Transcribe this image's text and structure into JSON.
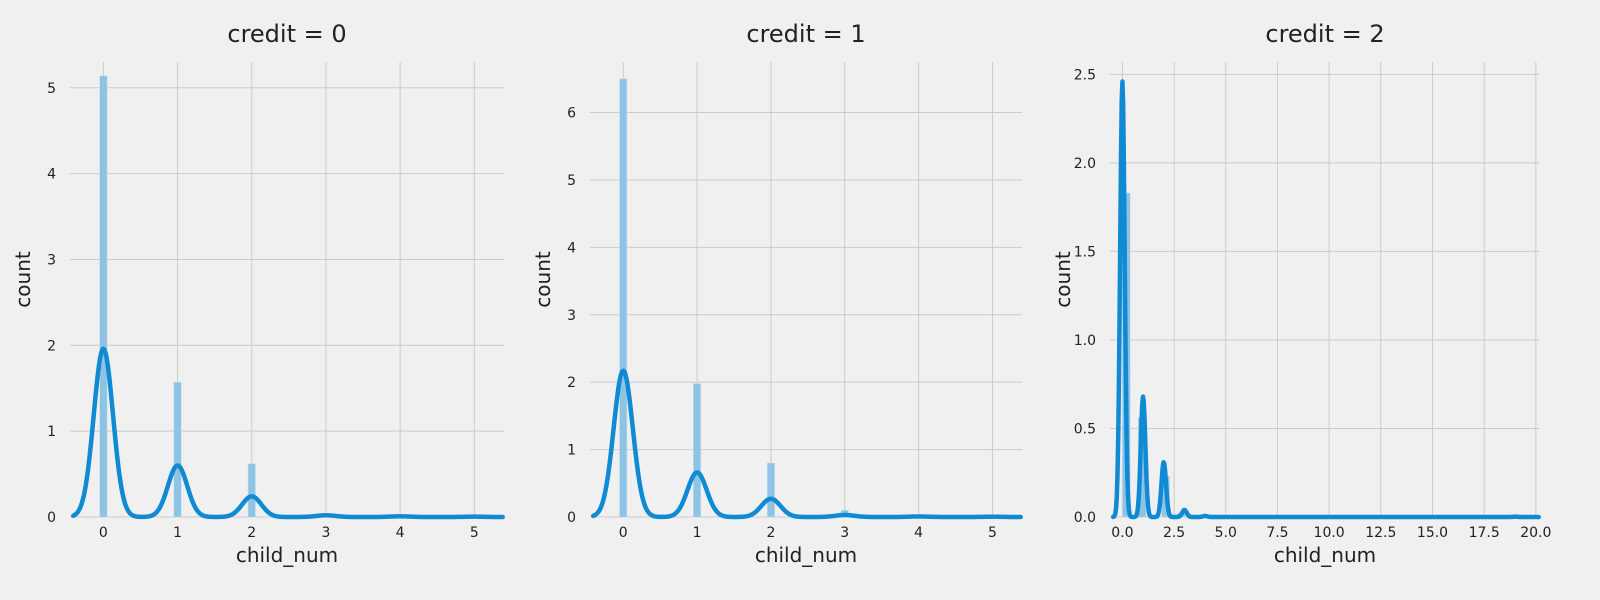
{
  "chart_data": [
    {
      "type": "bar",
      "title": "credit = 0",
      "xlabel": "child_num",
      "ylabel": "count",
      "xlim": [
        -0.45,
        5.4
      ],
      "ylim": [
        0,
        5.3
      ],
      "xticks": [
        0,
        1,
        2,
        3,
        4,
        5
      ],
      "xtick_labels": [
        "0",
        "1",
        "2",
        "3",
        "4",
        "5"
      ],
      "yticks": [
        0,
        1,
        2,
        3,
        4,
        5
      ],
      "ytick_labels": [
        "0",
        "1",
        "2",
        "3",
        "4",
        "5"
      ],
      "bin_width": 0.1,
      "bars": [
        {
          "x": 0,
          "height": 5.14
        },
        {
          "x": 1,
          "height": 1.57
        },
        {
          "x": 2,
          "height": 0.62
        },
        {
          "x": 3,
          "height": 0.02
        },
        {
          "x": 4,
          "height": 0.005
        },
        {
          "x": 5,
          "height": 0.002
        }
      ],
      "kde": {
        "bandwidth": 0.13,
        "components": [
          {
            "center": 0,
            "peak": 1.96
          },
          {
            "center": 1,
            "peak": 0.6
          },
          {
            "center": 2,
            "peak": 0.24
          },
          {
            "center": 3,
            "peak": 0.02
          },
          {
            "center": 4,
            "peak": 0.008
          },
          {
            "center": 5,
            "peak": 0.004
          }
        ]
      },
      "grid": true
    },
    {
      "type": "bar",
      "title": "credit = 1",
      "xlabel": "child_num",
      "ylabel": "count",
      "xlim": [
        -0.45,
        5.4
      ],
      "ylim": [
        0,
        6.75
      ],
      "xticks": [
        0,
        1,
        2,
        3,
        4,
        5
      ],
      "xtick_labels": [
        "0",
        "1",
        "2",
        "3",
        "4",
        "5"
      ],
      "yticks": [
        0,
        1,
        2,
        3,
        4,
        5,
        6
      ],
      "ytick_labels": [
        "0",
        "1",
        "2",
        "3",
        "4",
        "5",
        "6"
      ],
      "bin_width": 0.1,
      "bars": [
        {
          "x": 0,
          "height": 6.5
        },
        {
          "x": 1,
          "height": 1.98
        },
        {
          "x": 2,
          "height": 0.8
        },
        {
          "x": 3,
          "height": 0.1
        },
        {
          "x": 4,
          "height": 0.005
        },
        {
          "x": 5,
          "height": 0.002
        }
      ],
      "kde": {
        "bandwidth": 0.13,
        "components": [
          {
            "center": 0,
            "peak": 2.17
          },
          {
            "center": 1,
            "peak": 0.66
          },
          {
            "center": 2,
            "peak": 0.27
          },
          {
            "center": 3,
            "peak": 0.03
          },
          {
            "center": 4,
            "peak": 0.008
          },
          {
            "center": 5,
            "peak": 0.004
          }
        ]
      },
      "grid": true
    },
    {
      "type": "bar",
      "title": "credit = 2",
      "xlabel": "child_num",
      "ylabel": "count",
      "xlim": [
        -0.6,
        20.2
      ],
      "ylim": [
        0,
        2.57
      ],
      "xticks": [
        0,
        2.5,
        5,
        7.5,
        10,
        12.5,
        15,
        17.5,
        20
      ],
      "xtick_labels": [
        "0.0",
        "2.5",
        "5.0",
        "7.5",
        "10.0",
        "12.5",
        "15.0",
        "17.5",
        "20.0"
      ],
      "yticks": [
        0,
        0.5,
        1,
        1.5,
        2,
        2.5
      ],
      "ytick_labels": [
        "0.0",
        "0.5",
        "1.0",
        "1.5",
        "2.0",
        "2.5"
      ],
      "bin_width": 0.38,
      "bars": [
        {
          "x": 0.19,
          "height": 1.83
        },
        {
          "x": 0.95,
          "height": 0.56
        },
        {
          "x": 2.09,
          "height": 0.23
        },
        {
          "x": 2.85,
          "height": 0.02
        }
      ],
      "kde": {
        "bandwidth": 0.11,
        "components": [
          {
            "center": 0,
            "peak": 2.46
          },
          {
            "center": 1,
            "peak": 0.68
          },
          {
            "center": 2,
            "peak": 0.31
          },
          {
            "center": 3,
            "peak": 0.04
          },
          {
            "center": 4,
            "peak": 0.006
          },
          {
            "center": 19,
            "peak": 0.002
          }
        ]
      },
      "grid": true
    }
  ]
}
